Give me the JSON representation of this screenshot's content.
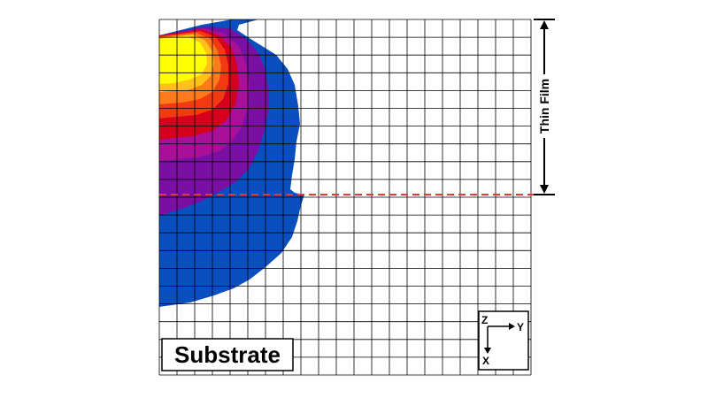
{
  "diagram": {
    "region_bottom_label": "Substrate",
    "region_top_label": "Thin Film",
    "axes": {
      "z_label": "Z",
      "y_label": "Y",
      "x_label": "X"
    },
    "colors": {
      "background": "#ffffff",
      "grid": "#000000",
      "interface_line": "#e53935",
      "contour_levels": [
        "#0a4fbf",
        "#7a0fa3",
        "#a8109a",
        "#d6001e",
        "#f23a12",
        "#ff7a1a",
        "#ffc21a",
        "#ffff00"
      ]
    }
  }
}
